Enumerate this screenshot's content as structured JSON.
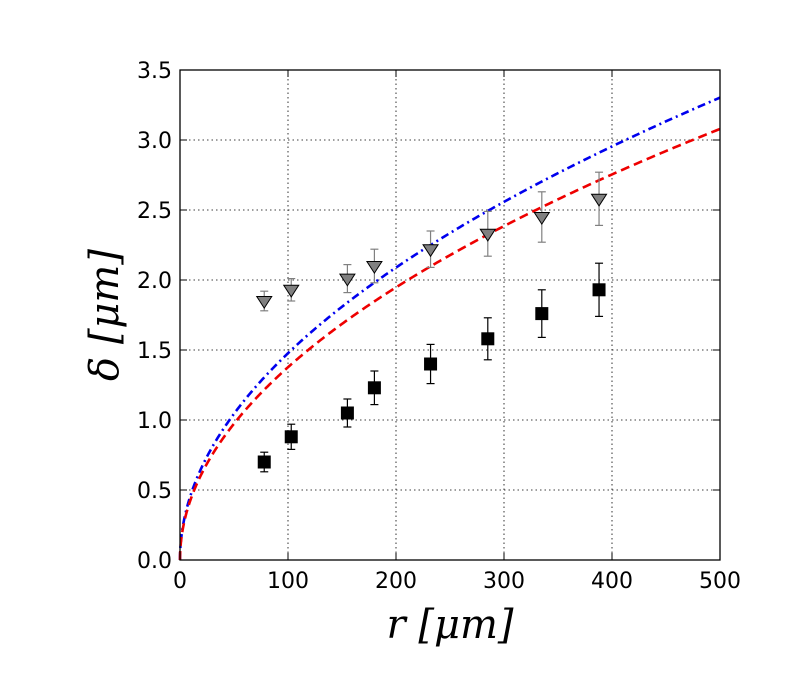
{
  "chart_data": {
    "type": "scatter",
    "title": "",
    "xlabel": "r [μm]",
    "ylabel": "δ [μm]",
    "xlim": [
      0,
      500
    ],
    "ylim": [
      0,
      3.5
    ],
    "grid": true,
    "xticks": [
      0,
      100,
      200,
      300,
      400,
      500
    ],
    "yticks": [
      0.0,
      0.5,
      1.0,
      1.5,
      2.0,
      2.5,
      3.0,
      3.5
    ],
    "xtick_labels": [
      "0",
      "100",
      "200",
      "300",
      "400",
      "500"
    ],
    "ytick_labels": [
      "0.0",
      "0.5",
      "1.0",
      "1.5",
      "2.0",
      "2.5",
      "3.0",
      "3.5"
    ],
    "series": [
      {
        "name": "triangles",
        "marker": "triangle-down",
        "color": "#808080",
        "errcolor": "#808080",
        "points": [
          {
            "x": 78,
            "y": 1.85,
            "err": 0.07
          },
          {
            "x": 103,
            "y": 1.93,
            "err": 0.08
          },
          {
            "x": 155,
            "y": 2.01,
            "err": 0.1
          },
          {
            "x": 180,
            "y": 2.1,
            "err": 0.12
          },
          {
            "x": 232,
            "y": 2.22,
            "err": 0.13
          },
          {
            "x": 285,
            "y": 2.33,
            "err": 0.16
          },
          {
            "x": 335,
            "y": 2.45,
            "err": 0.18
          },
          {
            "x": 388,
            "y": 2.58,
            "err": 0.19
          }
        ]
      },
      {
        "name": "squares",
        "marker": "square",
        "color": "#000000",
        "errcolor": "#000000",
        "points": [
          {
            "x": 78,
            "y": 0.7,
            "err": 0.07
          },
          {
            "x": 103,
            "y": 0.88,
            "err": 0.09
          },
          {
            "x": 155,
            "y": 1.05,
            "err": 0.1
          },
          {
            "x": 180,
            "y": 1.23,
            "err": 0.12
          },
          {
            "x": 232,
            "y": 1.4,
            "err": 0.14
          },
          {
            "x": 285,
            "y": 1.58,
            "err": 0.15
          },
          {
            "x": 335,
            "y": 1.76,
            "err": 0.17
          },
          {
            "x": 388,
            "y": 1.93,
            "err": 0.19
          }
        ]
      }
    ],
    "curves": [
      {
        "name": "blue-dashdot",
        "color": "#0000ee",
        "style": "dash-dot",
        "coef": 0.1477,
        "exponent": 0.5
      },
      {
        "name": "red-dashed",
        "color": "#ee0000",
        "style": "dashed",
        "coef": 0.1377,
        "exponent": 0.5
      }
    ]
  }
}
